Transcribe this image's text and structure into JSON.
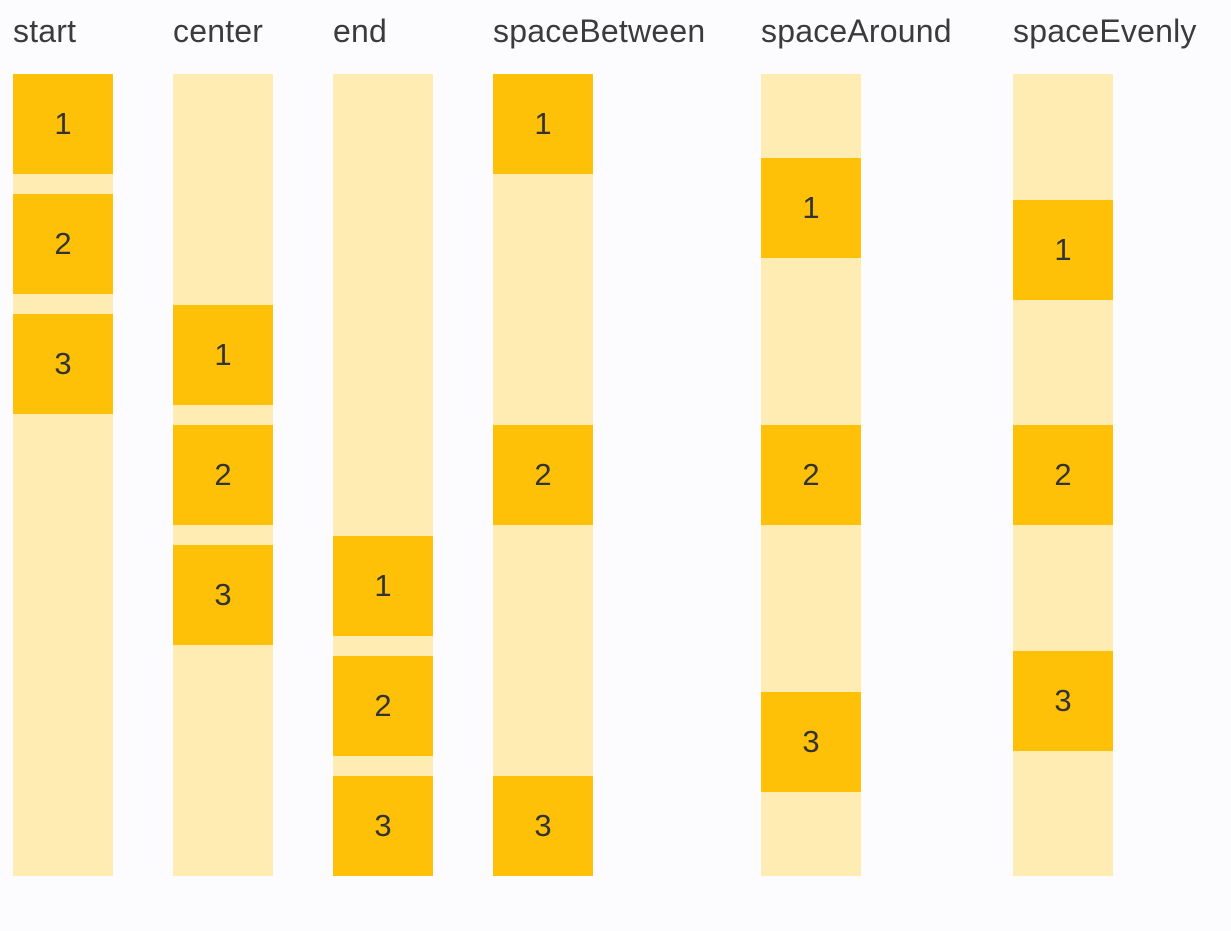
{
  "page": {
    "description": "flex justify-content demo",
    "background": "#FCFCFE"
  },
  "colors": {
    "track": "#FFECB3",
    "item": "#FFC107",
    "heading_text": "#3B3B3B",
    "item_text": "#333333"
  },
  "columns": [
    {
      "label": "start",
      "variant": "start",
      "gapped": true,
      "items": [
        "1",
        "2",
        "3"
      ]
    },
    {
      "label": "center",
      "variant": "center",
      "gapped": true,
      "items": [
        "1",
        "2",
        "3"
      ]
    },
    {
      "label": "end",
      "variant": "end",
      "gapped": true,
      "items": [
        "1",
        "2",
        "3"
      ]
    },
    {
      "label": "spaceBetween",
      "variant": "spaceBetween",
      "gapped": false,
      "items": [
        "1",
        "2",
        "3"
      ]
    },
    {
      "label": "spaceAround",
      "variant": "spaceAround",
      "gapped": false,
      "items": [
        "1",
        "2",
        "3"
      ]
    },
    {
      "label": "spaceEvenly",
      "variant": "spaceEvenly",
      "gapped": false,
      "items": [
        "1",
        "2",
        "3"
      ]
    }
  ]
}
